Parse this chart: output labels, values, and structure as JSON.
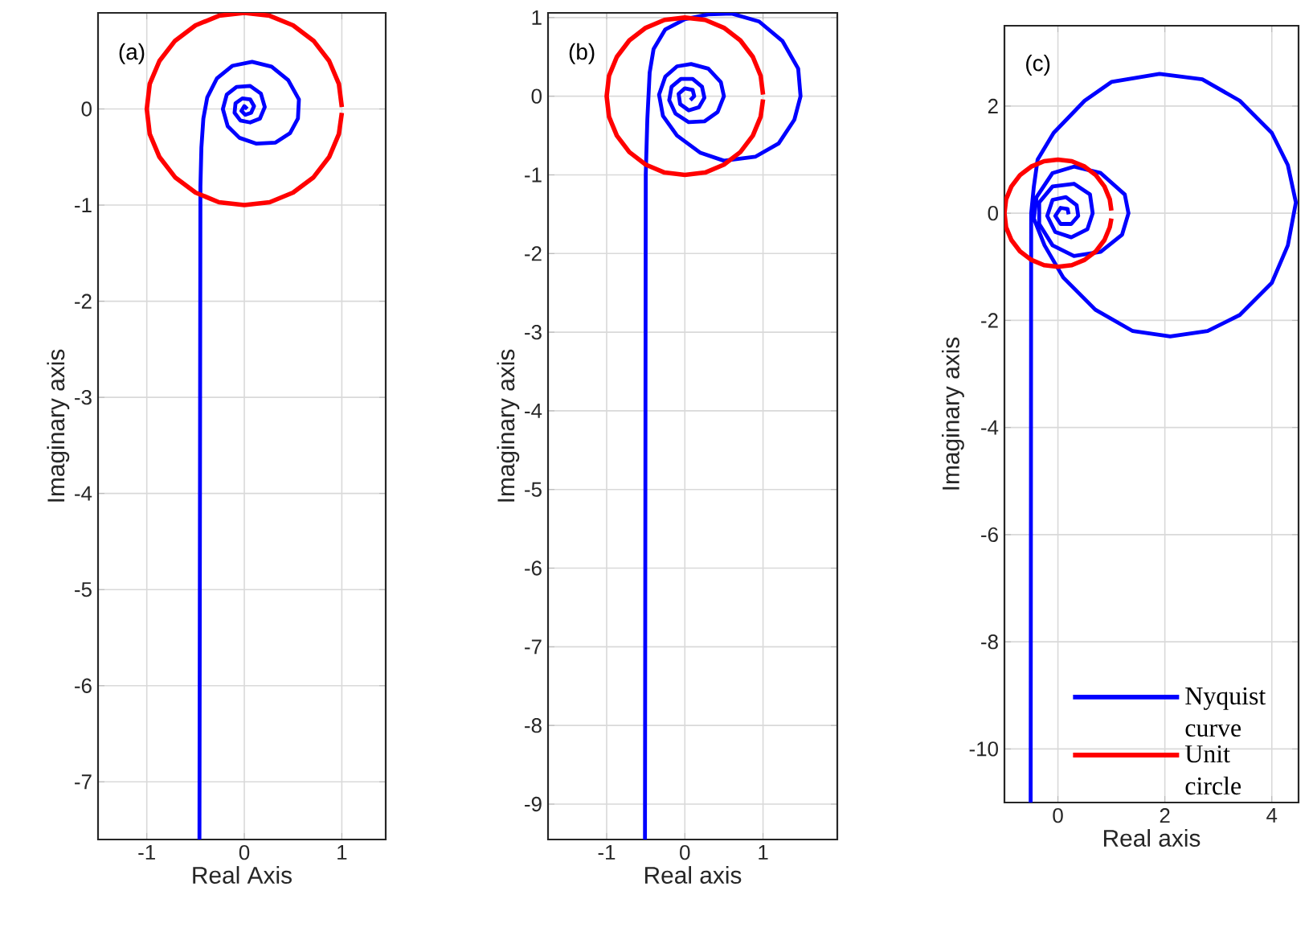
{
  "chart_data": [
    {
      "type": "line",
      "xlabel": "Real Axis",
      "ylabel": "Imaginary axis",
      "annotations": [
        "(a)"
      ],
      "xlim": [
        -1.5,
        1.45
      ],
      "ylim": [
        -7.6,
        1
      ],
      "xticks": [
        -1,
        0,
        1
      ],
      "yticks": [
        -7,
        -6,
        -5,
        -4,
        -3,
        -2,
        -1,
        0
      ],
      "grid": true,
      "series": [
        {
          "color": "#0000ff",
          "x": [
            -0.46,
            -0.45,
            -0.44,
            -0.42,
            -0.38,
            -0.28,
            -0.12,
            0.08,
            0.28,
            0.45,
            0.56,
            0.55,
            0.47,
            0.32,
            0.12,
            -0.05,
            -0.17,
            -0.22,
            -0.18,
            -0.08,
            0.06,
            0.17,
            0.21,
            0.16,
            0.06,
            -0.04,
            -0.1,
            -0.09,
            -0.02,
            0.06,
            0.1,
            0.07,
            0.01,
            -0.03,
            0,
            0.03
          ],
          "values": [
            -7.6,
            -0.8,
            -0.4,
            -0.1,
            0.12,
            0.32,
            0.45,
            0.49,
            0.44,
            0.3,
            0.1,
            -0.1,
            -0.25,
            -0.35,
            -0.36,
            -0.3,
            -0.18,
            0,
            0.15,
            0.23,
            0.24,
            0.16,
            0.02,
            -0.1,
            -0.14,
            -0.12,
            -0.04,
            0.06,
            0.11,
            0.1,
            0.03,
            -0.04,
            -0.06,
            -0.02,
            0.03,
            0
          ]
        },
        {
          "color": "#ff0000",
          "x": [
            1,
            0.97,
            0.87,
            0.71,
            0.5,
            0.26,
            0,
            -0.26,
            -0.5,
            -0.71,
            -0.87,
            -0.97,
            -1,
            -0.97,
            -0.87,
            -0.71,
            -0.5,
            -0.26,
            0,
            0.26,
            0.5,
            0.71,
            0.87,
            0.97,
            1
          ],
          "values": [
            0.02,
            0.26,
            0.5,
            0.71,
            0.87,
            0.97,
            1,
            0.97,
            0.87,
            0.71,
            0.5,
            0.26,
            0,
            -0.26,
            -0.5,
            -0.71,
            -0.87,
            -0.97,
            -1,
            -0.97,
            -0.87,
            -0.71,
            -0.5,
            -0.26,
            -0.04
          ]
        }
      ]
    },
    {
      "type": "line",
      "xlabel": "Real axis",
      "ylabel": "Imaginary axis",
      "annotations": [
        "(b)"
      ],
      "xlim": [
        -1.75,
        1.95
      ],
      "ylim": [
        -9.45,
        1.06
      ],
      "xticks": [
        -1,
        0,
        1
      ],
      "yticks": [
        -9,
        -8,
        -7,
        -6,
        -5,
        -4,
        -3,
        -2,
        -1,
        0,
        1
      ],
      "grid": true,
      "series": [
        {
          "color": "#0000ff",
          "x": [
            -0.51,
            -0.5,
            -0.48,
            -0.45,
            -0.4,
            -0.25,
            0,
            0.3,
            0.6,
            0.95,
            1.25,
            1.45,
            1.48,
            1.4,
            1.2,
            0.9,
            0.5,
            0.2,
            -0.1,
            -0.28,
            -0.33,
            -0.25,
            -0.1,
            0.08,
            0.3,
            0.46,
            0.5,
            0.42,
            0.25,
            0.05,
            -0.12,
            -0.2,
            -0.17,
            -0.05,
            0.1,
            0.22,
            0.25,
            0.18,
            0.05,
            -0.06,
            -0.08,
            0,
            0.1,
            0.12,
            0.07
          ],
          "values": [
            -9.45,
            -1,
            -0.3,
            0.3,
            0.6,
            0.85,
            0.98,
            1.04,
            1.05,
            0.95,
            0.7,
            0.35,
            0,
            -0.3,
            -0.6,
            -0.77,
            -0.82,
            -0.72,
            -0.5,
            -0.25,
            0.02,
            0.25,
            0.38,
            0.41,
            0.35,
            0.18,
            0,
            -0.2,
            -0.32,
            -0.33,
            -0.22,
            -0.05,
            0.12,
            0.22,
            0.22,
            0.12,
            -0.02,
            -0.14,
            -0.18,
            -0.1,
            0.03,
            0.1,
            0.08,
            0,
            -0.05
          ]
        },
        {
          "color": "#ff0000",
          "x": [
            1,
            0.97,
            0.87,
            0.71,
            0.5,
            0.26,
            0,
            -0.26,
            -0.5,
            -0.71,
            -0.87,
            -0.97,
            -1,
            -0.97,
            -0.87,
            -0.71,
            -0.5,
            -0.26,
            0,
            0.26,
            0.5,
            0.71,
            0.87,
            0.97,
            1
          ],
          "values": [
            0.02,
            0.26,
            0.5,
            0.71,
            0.87,
            0.97,
            1,
            0.97,
            0.87,
            0.71,
            0.5,
            0.26,
            0,
            -0.26,
            -0.5,
            -0.71,
            -0.87,
            -0.97,
            -1,
            -0.97,
            -0.87,
            -0.71,
            -0.5,
            -0.26,
            -0.04
          ]
        }
      ]
    },
    {
      "type": "line",
      "xlabel": "Real axis",
      "ylabel": "Imaginary axis",
      "annotations": [
        "(c)"
      ],
      "xlim": [
        -1,
        4.5
      ],
      "ylim": [
        -11,
        3.5
      ],
      "xticks": [
        0,
        2,
        4
      ],
      "yticks": [
        -10,
        -8,
        -6,
        -4,
        -2,
        0,
        2
      ],
      "grid": true,
      "legend": "bottom right",
      "series": [
        {
          "name": "Nyquist curve",
          "color": "#0000ff",
          "x": [
            -0.51,
            -0.5,
            -0.45,
            -0.38,
            -0.08,
            0.5,
            1.0,
            1.9,
            2.7,
            3.4,
            4.0,
            4.3,
            4.45,
            4.3,
            4.0,
            3.4,
            2.8,
            2.1,
            1.4,
            0.7,
            0.1,
            -0.25,
            -0.45,
            -0.4,
            -0.1,
            0.3,
            0.8,
            1.25,
            1.32,
            1.2,
            0.8,
            0.3,
            -0.1,
            -0.35,
            -0.35,
            -0.1,
            0.3,
            0.6,
            0.65,
            0.55,
            0.25,
            -0.05,
            -0.2,
            -0.1,
            0.15,
            0.35,
            0.38,
            0.25,
            0.05,
            -0.05,
            0.05,
            0.18,
            0.2
          ],
          "values": [
            -11,
            0,
            0.5,
            1.0,
            1.5,
            2.1,
            2.45,
            2.6,
            2.5,
            2.1,
            1.5,
            0.9,
            0.2,
            -0.6,
            -1.3,
            -1.9,
            -2.2,
            -2.3,
            -2.2,
            -1.8,
            -1.2,
            -0.6,
            -0.1,
            0.3,
            0.75,
            0.87,
            0.75,
            0.35,
            0,
            -0.4,
            -0.72,
            -0.8,
            -0.6,
            -0.2,
            0.2,
            0.5,
            0.55,
            0.35,
            0,
            -0.3,
            -0.45,
            -0.35,
            -0.05,
            0.25,
            0.3,
            0.15,
            -0.05,
            -0.2,
            -0.2,
            -0.05,
            0.1,
            0.08,
            -0.02
          ]
        },
        {
          "name": "Unit circle",
          "color": "#ff0000",
          "x": [
            1,
            0.97,
            0.87,
            0.71,
            0.5,
            0.26,
            0,
            -0.26,
            -0.5,
            -0.71,
            -0.87,
            -0.97,
            -1,
            -0.97,
            -0.87,
            -0.71,
            -0.5,
            -0.26,
            0,
            0.26,
            0.5,
            0.71,
            0.87,
            0.97,
            1
          ],
          "values": [
            0.05,
            0.26,
            0.5,
            0.71,
            0.87,
            0.97,
            1,
            0.97,
            0.87,
            0.71,
            0.5,
            0.26,
            0,
            -0.26,
            -0.5,
            -0.71,
            -0.87,
            -0.97,
            -1,
            -0.97,
            -0.87,
            -0.71,
            -0.5,
            -0.26,
            -0.1
          ]
        }
      ]
    }
  ]
}
